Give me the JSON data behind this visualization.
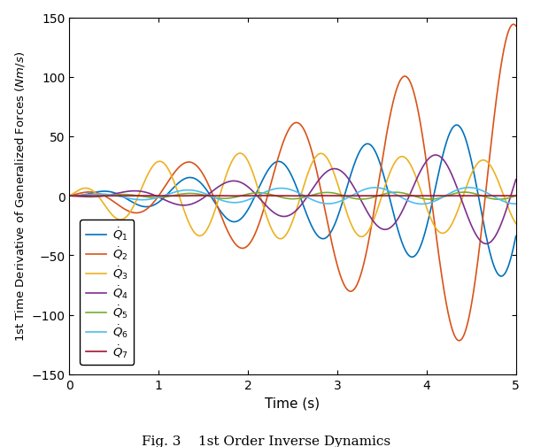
{
  "title": "Fig. 3    1st Order Inverse Dynamics",
  "xlabel": "Time (s)",
  "ylabel": "1st Time Derivative of Generalized Forces $(Nm/s)$",
  "xlim": [
    0,
    5
  ],
  "ylim": [
    -150,
    150
  ],
  "yticks": [
    -150,
    -100,
    -50,
    0,
    50,
    100,
    150
  ],
  "xticks": [
    0,
    1,
    2,
    3,
    4,
    5
  ],
  "legend_labels": [
    "$\\dot{Q}_1$",
    "$\\dot{Q}_2$",
    "$\\dot{Q}_3$",
    "$\\dot{Q}_4$",
    "$\\dot{Q}_5$",
    "$\\dot{Q}_6$",
    "$\\dot{Q}_7$"
  ],
  "colors": [
    "#0072BD",
    "#D95319",
    "#EDB120",
    "#7E2F8E",
    "#77AC30",
    "#4DBEEE",
    "#A2142F"
  ],
  "line_width": 1.2,
  "t_start": 0.0,
  "t_end": 5.0,
  "n_points": 3000
}
